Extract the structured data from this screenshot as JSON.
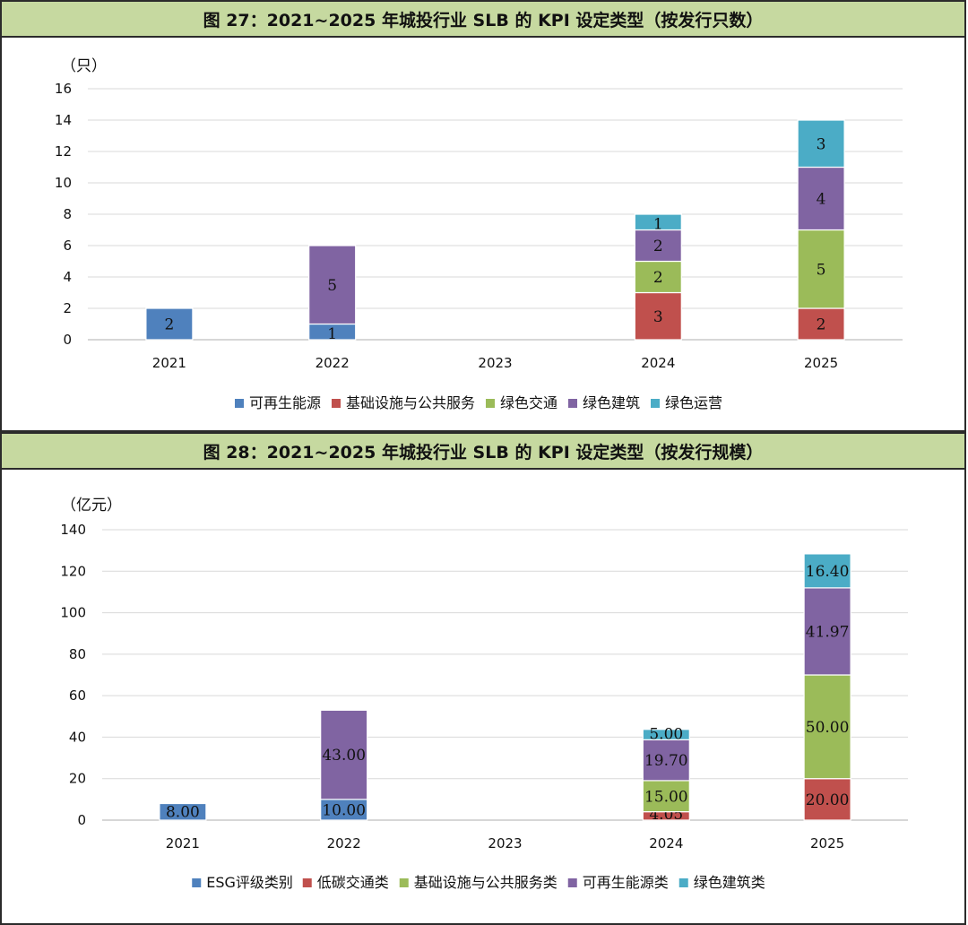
{
  "chart_data": [
    {
      "type": "bar",
      "stacked": true,
      "title": "图 27：2021~2025 年城投行业 SLB 的 KPI 设定类型（按发行只数）",
      "ylabel": "（只）",
      "xlabel": "",
      "ylim": [
        0,
        16
      ],
      "yticks": [
        "0",
        "2",
        "4",
        "6",
        "8",
        "10",
        "12",
        "14",
        "16"
      ],
      "categories": [
        "2021",
        "2022",
        "2023",
        "2024",
        "2025"
      ],
      "legend_position": "bottom",
      "series": [
        {
          "name": "可再生能源",
          "color": "#4f81bd",
          "values": [
            2,
            1,
            0,
            0,
            0
          ],
          "labels": [
            "2",
            "1",
            "",
            "",
            ""
          ]
        },
        {
          "name": "基础设施与公共服务",
          "color": "#c0504d",
          "values": [
            0,
            0,
            0,
            3,
            2
          ],
          "labels": [
            "",
            "",
            "",
            "3",
            "2"
          ]
        },
        {
          "name": "绿色交通",
          "color": "#9bbb59",
          "values": [
            0,
            0,
            0,
            2,
            5
          ],
          "labels": [
            "",
            "",
            "",
            "2",
            "5"
          ]
        },
        {
          "name": "绿色建筑",
          "color": "#8064a2",
          "values": [
            0,
            5,
            0,
            2,
            4
          ],
          "labels": [
            "",
            "5",
            "",
            "2",
            "4"
          ]
        },
        {
          "name": "绿色运营",
          "color": "#4bacc6",
          "values": [
            0,
            0,
            0,
            1,
            3
          ],
          "labels": [
            "",
            "",
            "",
            "1",
            "3"
          ]
        }
      ]
    },
    {
      "type": "bar",
      "stacked": true,
      "title": "图 28：2021~2025 年城投行业 SLB 的 KPI 设定类型（按发行规模）",
      "ylabel": "（亿元）",
      "xlabel": "",
      "ylim": [
        0,
        140
      ],
      "yticks": [
        "0",
        "20",
        "40",
        "60",
        "80",
        "100",
        "120",
        "140"
      ],
      "categories": [
        "2021",
        "2022",
        "2023",
        "2024",
        "2025"
      ],
      "legend_position": "bottom",
      "series": [
        {
          "name": "ESG评级类别",
          "color": "#4f81bd",
          "values": [
            8,
            10,
            0,
            0,
            0
          ],
          "labels": [
            "8.00",
            "10.00",
            "",
            "",
            ""
          ]
        },
        {
          "name": "低碳交通类",
          "color": "#c0504d",
          "values": [
            0,
            0,
            0,
            4.05,
            20
          ],
          "labels": [
            "",
            "",
            "",
            "4.05",
            "20.00"
          ]
        },
        {
          "name": "基础设施与公共服务类",
          "color": "#9bbb59",
          "values": [
            0,
            0,
            0,
            15,
            50
          ],
          "labels": [
            "",
            "",
            "",
            "15.00",
            "50.00"
          ]
        },
        {
          "name": "可再生能源类",
          "color": "#8064a2",
          "values": [
            0,
            43,
            0,
            19.7,
            41.97
          ],
          "labels": [
            "",
            "43.00",
            "",
            "19.70",
            "41.97"
          ]
        },
        {
          "name": "绿色建筑类",
          "color": "#4bacc6",
          "values": [
            0,
            0,
            0,
            5,
            16.4
          ],
          "labels": [
            "",
            "",
            "",
            "5.00",
            "16.40"
          ]
        }
      ]
    }
  ]
}
